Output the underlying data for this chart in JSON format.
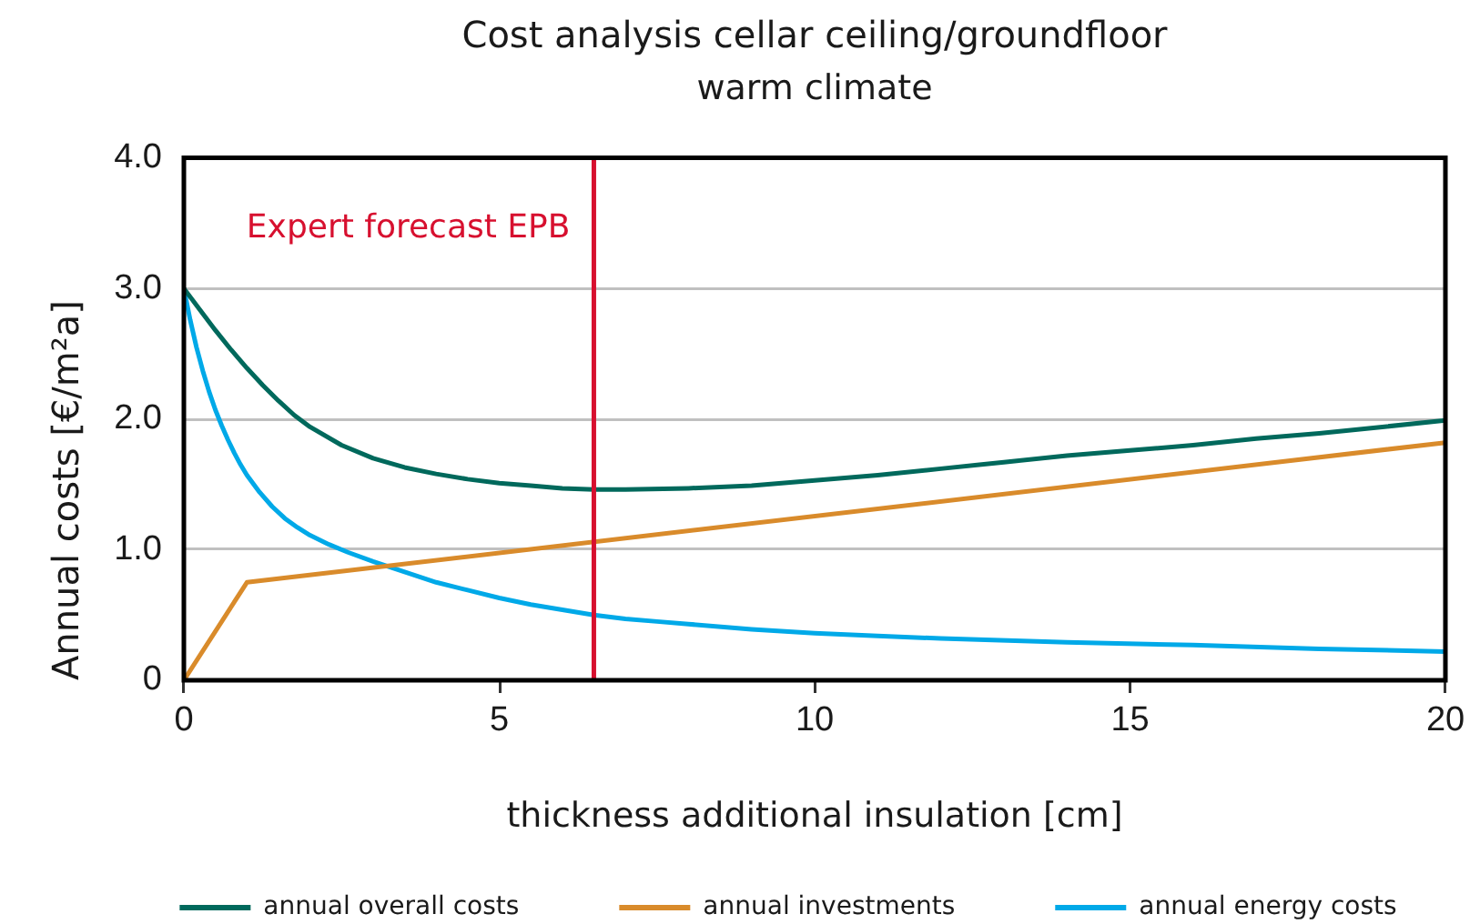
{
  "chart_data": {
    "type": "line",
    "title": "Cost analysis cellar ceiling/groundfloor",
    "subtitle": "warm climate",
    "xlabel": "thickness additional insulation [cm]",
    "ylabel": "Annual costs [€/m²a]",
    "series": [
      {
        "name": "annual overall costs",
        "color": "#00695c",
        "x": [
          0,
          0.25,
          0.5,
          0.75,
          1,
          1.25,
          1.5,
          1.75,
          2,
          2.5,
          3,
          3.5,
          4,
          4.5,
          5,
          5.5,
          6,
          6.5,
          7,
          8,
          9,
          10,
          11,
          12,
          13,
          14,
          15,
          16,
          17,
          18,
          19,
          20
        ],
        "values": [
          3.0,
          2.84,
          2.68,
          2.53,
          2.39,
          2.26,
          2.14,
          2.03,
          1.94,
          1.8,
          1.7,
          1.63,
          1.58,
          1.54,
          1.51,
          1.49,
          1.47,
          1.46,
          1.46,
          1.47,
          1.49,
          1.53,
          1.57,
          1.62,
          1.67,
          1.72,
          1.76,
          1.8,
          1.85,
          1.89,
          1.94,
          1.99
        ]
      },
      {
        "name": "annual investments",
        "color": "#d98b2b",
        "x": [
          0,
          1,
          20
        ],
        "values": [
          0,
          0.75,
          1.82
        ]
      },
      {
        "name": "annual energy costs",
        "color": "#00a9e8",
        "x": [
          0,
          0.1,
          0.2,
          0.3,
          0.4,
          0.5,
          0.6,
          0.7,
          0.8,
          0.9,
          1,
          1.2,
          1.4,
          1.6,
          1.8,
          2,
          2.3,
          2.6,
          3,
          3.5,
          4,
          4.5,
          5,
          5.5,
          6,
          6.5,
          7,
          7.5,
          8,
          9,
          10,
          11,
          12,
          14,
          16,
          18,
          20
        ],
        "values": [
          3.0,
          2.76,
          2.55,
          2.37,
          2.21,
          2.07,
          1.95,
          1.84,
          1.74,
          1.65,
          1.57,
          1.44,
          1.33,
          1.24,
          1.17,
          1.11,
          1.04,
          0.98,
          0.91,
          0.83,
          0.75,
          0.69,
          0.63,
          0.58,
          0.54,
          0.5,
          0.47,
          0.45,
          0.43,
          0.39,
          0.36,
          0.34,
          0.32,
          0.29,
          0.27,
          0.24,
          0.22
        ]
      }
    ],
    "xlim": [
      0,
      20
    ],
    "xticks": [
      0,
      5,
      10,
      15,
      20
    ],
    "ylim": [
      0,
      4
    ],
    "yticks": [
      0,
      {
        "value": 1,
        "label": "1.0"
      },
      {
        "value": 2,
        "label": "2.0"
      },
      {
        "value": 3,
        "label": "3.0"
      },
      {
        "value": 4,
        "label": "4.0"
      }
    ],
    "ref_lines": [
      {
        "axis": "x",
        "value": 6.5,
        "label": "Expert forecast EPB",
        "color": "#d7102f"
      }
    ],
    "grid": "y",
    "legend": "bottom",
    "marker": "none",
    "line_style": "solid"
  }
}
